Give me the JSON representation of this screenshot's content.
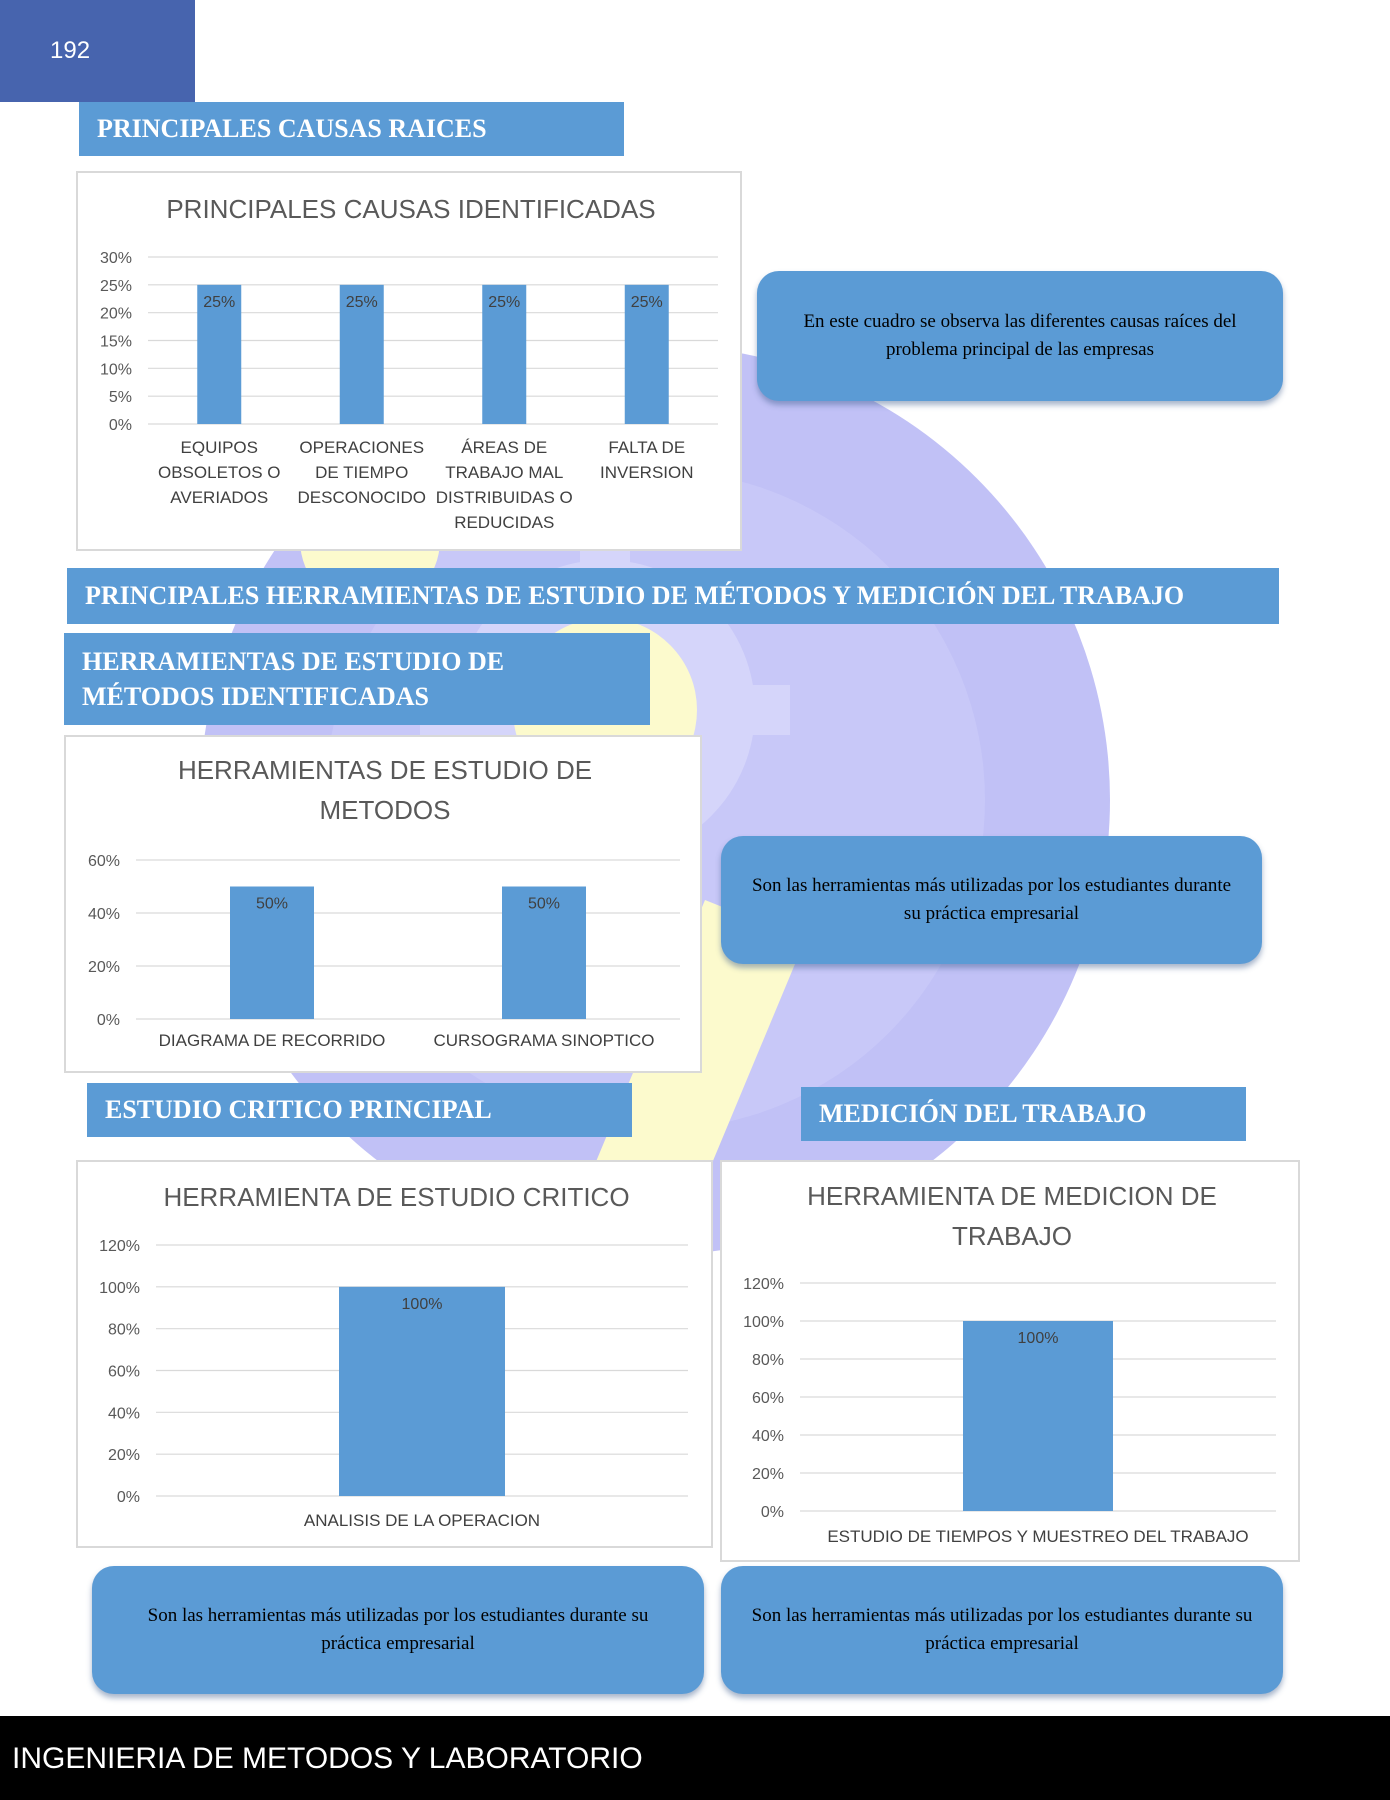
{
  "page": {
    "number": "192",
    "footer": "INGENIERIA DE METODOS Y LABORATORIO"
  },
  "sections": {
    "causas": "PRINCIPALES CAUSAS RAICES",
    "herramientas": "PRINCIPALES HERRAMIENTAS DE ESTUDIO DE MÉTODOS Y MEDICIÓN DEL TRABAJO",
    "metodos": "HERRAMIENTAS DE ESTUDIO DE MÉTODOS IDENTIFICADAS",
    "critico": "ESTUDIO CRITICO PRINCIPAL",
    "medicion": "MEDICIÓN DEL TRABAJO"
  },
  "notes": {
    "causas": "En este cuadro se observa las diferentes causas raíces del problema principal de las empresas",
    "metodos": "Son las herramientas más utilizadas por los estudiantes durante su práctica empresarial",
    "critico": "Son las herramientas más utilizadas por los estudiantes durante su práctica empresarial",
    "medicion": "Son las herramientas más utilizadas por los estudiantes durante su práctica empresarial"
  },
  "colors": {
    "bar": "#5b9bd5",
    "header": "#4764ae",
    "watermark_blue": "#7e7fe0",
    "watermark_yellow": "#fbf6a6"
  },
  "chart_data": [
    {
      "type": "bar",
      "title": "PRINCIPALES CAUSAS IDENTIFICADAS",
      "categories": [
        [
          "EQUIPOS",
          "OBSOLETOS O",
          "AVERIADOS"
        ],
        [
          "OPERACIONES",
          "DE TIEMPO",
          "DESCONOCIDO"
        ],
        [
          "ÁREAS DE",
          "TRABAJO MAL",
          "DISTRIBUIDAS O",
          "REDUCIDAS"
        ],
        [
          "FALTA DE",
          "INVERSION"
        ]
      ],
      "values": [
        25,
        25,
        25,
        25
      ],
      "data_labels": [
        "25%",
        "25%",
        "25%",
        "25%"
      ],
      "ylim": [
        0,
        30
      ],
      "yticks": [
        "0%",
        "5%",
        "10%",
        "15%",
        "20%",
        "25%",
        "30%"
      ],
      "grid": true
    },
    {
      "type": "bar",
      "title": [
        "HERRAMIENTAS DE ESTUDIO DE",
        "METODOS"
      ],
      "categories": [
        [
          "DIAGRAMA DE RECORRIDO"
        ],
        [
          "CURSOGRAMA SINOPTICO"
        ]
      ],
      "values": [
        50,
        50
      ],
      "data_labels": [
        "50%",
        "50%"
      ],
      "ylim": [
        0,
        60
      ],
      "yticks": [
        "0%",
        "20%",
        "40%",
        "60%"
      ],
      "grid": true
    },
    {
      "type": "bar",
      "title": "HERRAMIENTA DE ESTUDIO CRITICO",
      "categories": [
        [
          "ANALISIS DE LA OPERACION"
        ]
      ],
      "values": [
        100
      ],
      "data_labels": [
        "100%"
      ],
      "ylim": [
        0,
        120
      ],
      "yticks": [
        "0%",
        "20%",
        "40%",
        "60%",
        "80%",
        "100%",
        "120%"
      ],
      "grid": true
    },
    {
      "type": "bar",
      "title": [
        "HERRAMIENTA DE MEDICION DE",
        "TRABAJO"
      ],
      "categories": [
        [
          "ESTUDIO DE TIEMPOS Y MUESTREO DEL TRABAJO"
        ]
      ],
      "values": [
        100
      ],
      "data_labels": [
        "100%"
      ],
      "ylim": [
        0,
        120
      ],
      "yticks": [
        "0%",
        "20%",
        "40%",
        "60%",
        "80%",
        "100%",
        "120%"
      ],
      "grid": true
    }
  ]
}
